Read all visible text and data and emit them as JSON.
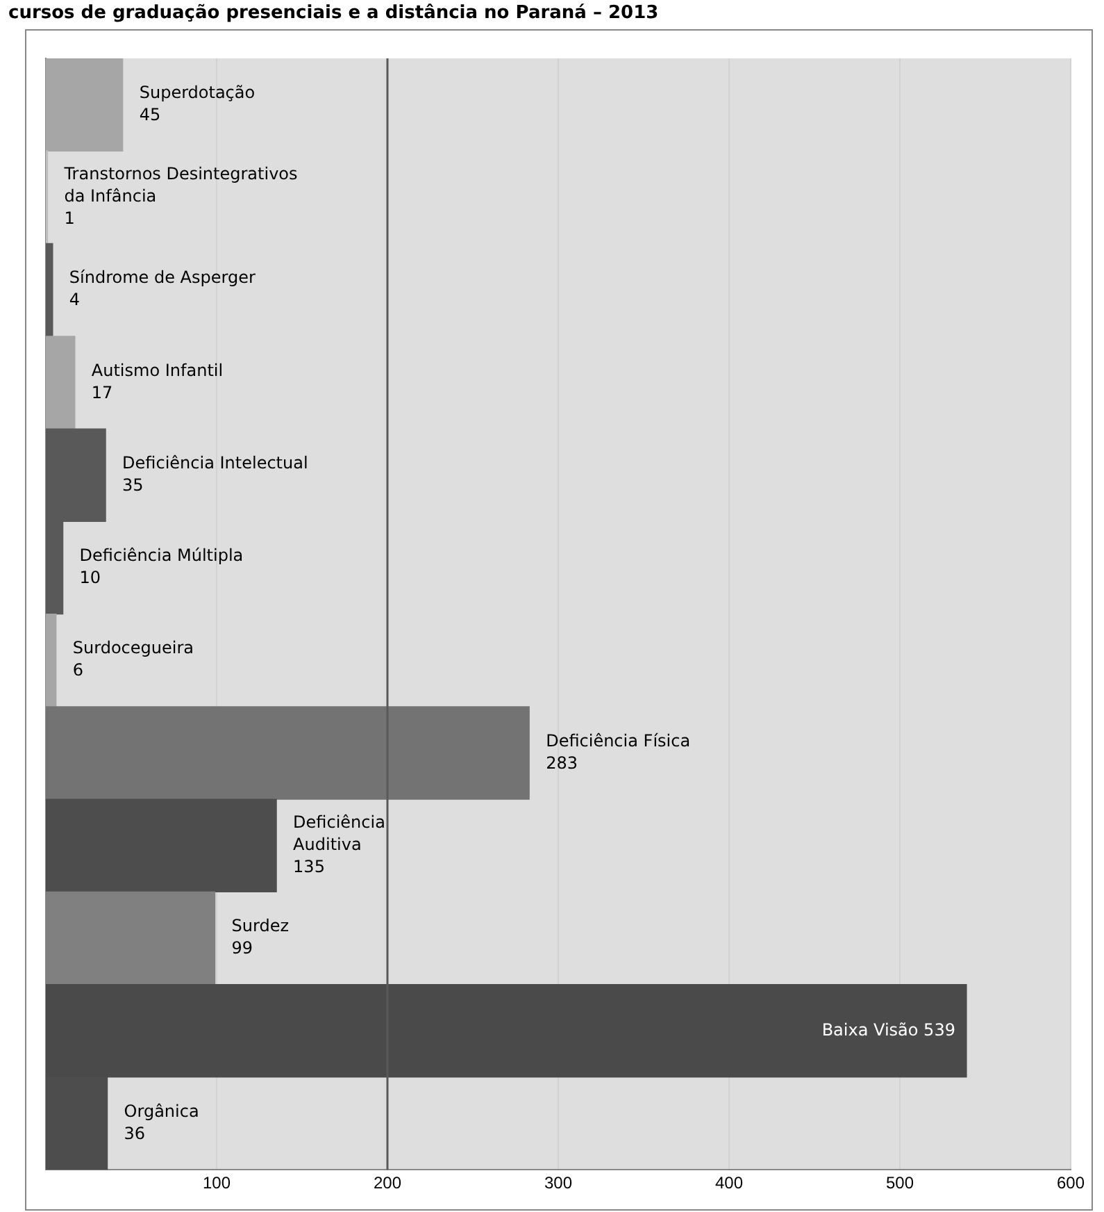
{
  "chart_data": {
    "type": "bar",
    "orientation": "horizontal",
    "title": "cursos de graduação presenciais e a distância no Paraná – 2013",
    "categories": [
      "Superdotação",
      "Transtornos Desintegrativos da Infância",
      "Síndrome de Asperger",
      "Autismo Infantil",
      "Deficiência Intelectual",
      "Deficiência Múltipla",
      "Surdocegueira",
      "Deficiência Física",
      "Deficiência Auditiva",
      "Surdez",
      "Baixa Visão",
      "Orgânica"
    ],
    "values": [
      45,
      1,
      4,
      17,
      35,
      10,
      6,
      283,
      135,
      99,
      539,
      36
    ],
    "colors": [
      "#a6a6a6",
      "#bfbfbf",
      "#595959",
      "#a6a6a6",
      "#595959",
      "#595959",
      "#a6a6a6",
      "#737373",
      "#4d4d4d",
      "#808080",
      "#4a4a4a",
      "#4d4d4d"
    ],
    "xlim": [
      0,
      600
    ],
    "xticks": [
      100,
      200,
      300,
      400,
      500,
      600
    ],
    "grid": "x",
    "tick_labels": "x",
    "data_labels": true,
    "ref_lines": [
      {
        "axis": "x",
        "value": 200,
        "color": "#595959"
      }
    ]
  }
}
